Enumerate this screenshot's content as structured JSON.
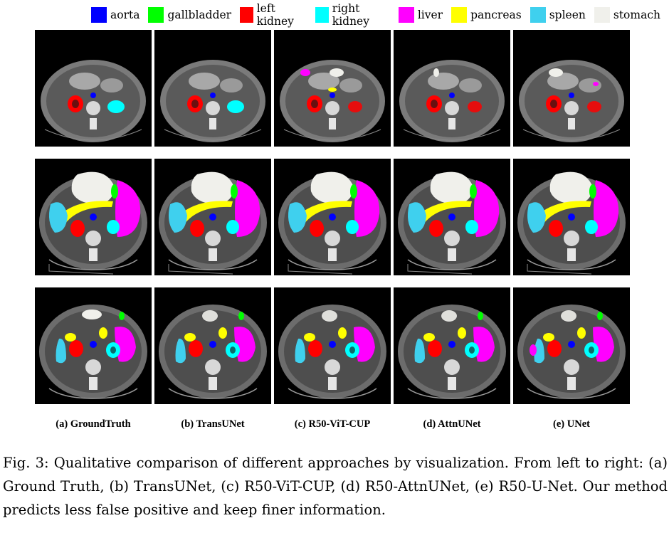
{
  "legend": [
    {
      "label": "aorta",
      "color": "#0000ff"
    },
    {
      "label": "gallbladder",
      "color": "#00ff00"
    },
    {
      "label": "left kidney",
      "color": "#ff0000"
    },
    {
      "label": "right kidney",
      "color": "#00ffff"
    },
    {
      "label": "liver",
      "color": "#ff00ff"
    },
    {
      "label": "pancreas",
      "color": "#ffff00"
    },
    {
      "label": "spleen",
      "color": "#3fd0ee"
    },
    {
      "label": "stomach",
      "color": "#f0f0eb"
    }
  ],
  "columns": [
    "(a) GroundTruth",
    "(b) TransUNet",
    "(c) R50-ViT-CUP",
    "(d) AttnUNet",
    "(e) UNet"
  ],
  "caption": "Fig. 3: Qualitative comparison of different approaches by visualization. From left to right: (a) Ground Truth, (b) TransUNet, (c) R50-ViT-CUP, (d) R50-AttnUNet, (e) R50-U-Net. Our method predicts less false positive and keep finer information."
}
